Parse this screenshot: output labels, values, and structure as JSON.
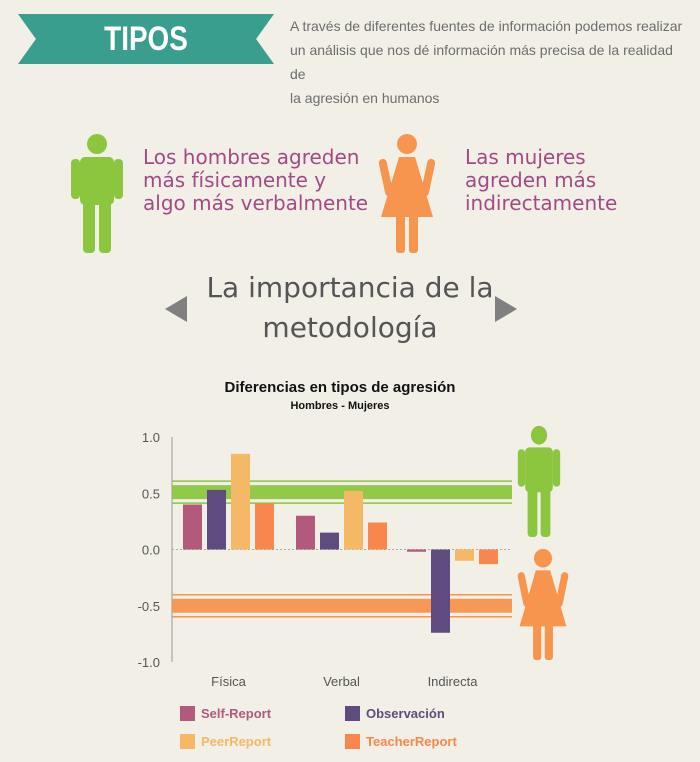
{
  "header": {
    "title": "TIPOS",
    "intro_lines": [
      "A través de diferentes fuentes de información podemos realizar",
      "un análisis que nos dé información más precisa de la realidad de",
      "la agresión en humanos"
    ],
    "banner_color": "#3a9e8f"
  },
  "men": {
    "icon": "male-figure-icon",
    "color": "#8cc63f",
    "caption_lines": [
      "Los hombres agreden",
      "más físicamente y",
      "algo más verbalmente"
    ]
  },
  "women": {
    "icon": "female-figure-icon",
    "color": "#f7944d",
    "caption_lines": [
      "Las mujeres",
      "agreden más",
      "indirectamente"
    ]
  },
  "methodology": {
    "lines": [
      "La importancia de la",
      "metodología"
    ]
  },
  "chart_data": {
    "type": "bar",
    "title": "Diferencias en tipos de agresión",
    "subtitle": "Hombres - Mujeres",
    "categories": [
      "Física",
      "Verbal",
      "Indirecta"
    ],
    "ylim": [
      -1.0,
      1.0
    ],
    "yticks": [
      "1.0",
      "0.5",
      "0.0",
      "-0.5",
      "-1.0"
    ],
    "ytick_values": [
      1.0,
      0.5,
      0.0,
      -0.5,
      -1.0
    ],
    "series": [
      {
        "name": "Self-Report",
        "color": "#b15a7c",
        "values": [
          0.4,
          0.3,
          -0.02
        ]
      },
      {
        "name": "Observación",
        "color": "#5f4b7e",
        "values": [
          0.53,
          0.15,
          -0.74
        ]
      },
      {
        "name": "PeerReport",
        "color": "#f5b867",
        "values": [
          0.85,
          0.52,
          -0.1
        ]
      },
      {
        "name": "TeacherReport",
        "color": "#f7874d",
        "values": [
          0.41,
          0.24,
          -0.13
        ]
      }
    ],
    "bands": [
      {
        "value": 0.51,
        "color": "#8cc63f"
      },
      {
        "value": -0.5,
        "color": "#f7944d"
      }
    ],
    "grid": false,
    "legend_position": "bottom"
  }
}
